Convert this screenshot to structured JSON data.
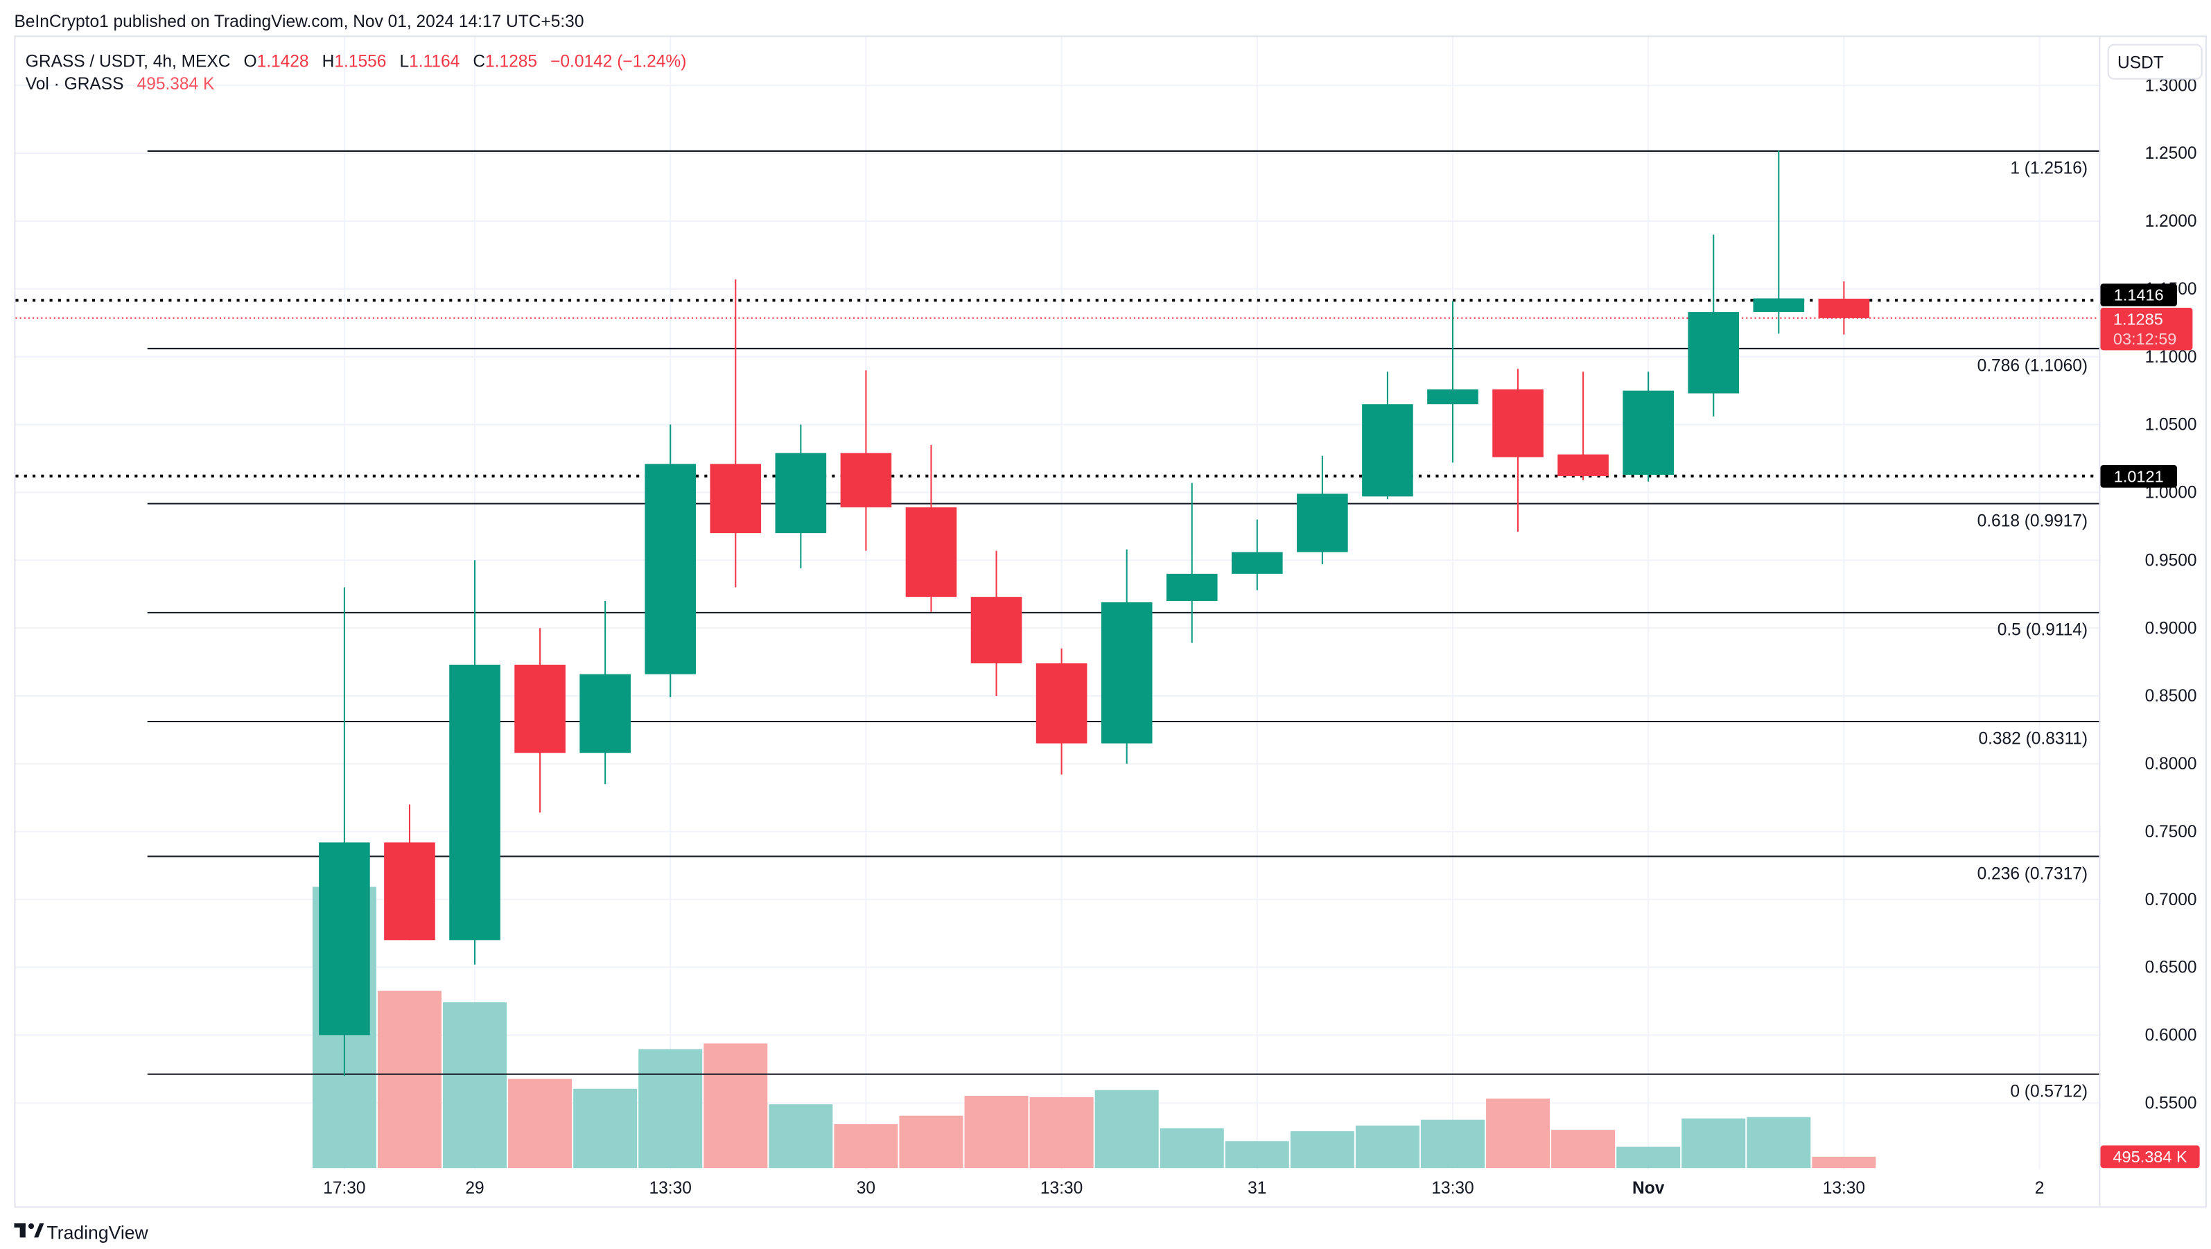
{
  "publisher_line": "BeInCrypto1 published on TradingView.com, Nov 01, 2024 14:17 UTC+5:30",
  "legend": {
    "symbol": "GRASS / USDT, 4h, MEXC",
    "o_label": "O",
    "o": "1.1428",
    "h_label": "H",
    "h": "1.1556",
    "l_label": "L",
    "l": "1.1164",
    "c_label": "C",
    "c": "1.1285",
    "change": "−0.0142 (−1.24%)",
    "vol_label": "Vol · GRASS",
    "vol": "495.384 K"
  },
  "currency_button": "USDT",
  "logo_text": "TradingView",
  "colors": {
    "up": "#089981",
    "down": "#f23645",
    "vol_up": "#92d2cc",
    "vol_down": "#f7a9a7"
  },
  "badges": {
    "line1": "1.1416",
    "last_price": "1.1285",
    "countdown": "03:12:59",
    "line2": "1.0121",
    "volume": "495.384 K"
  },
  "chart_data": {
    "type": "candlestick",
    "title": "GRASS / USDT, 4h, MEXC",
    "ylim": [
      0.5,
      1.31
    ],
    "y_ticks": [
      "1.3000",
      "1.2500",
      "1.2000",
      "1.1500",
      "1.1000",
      "1.0500",
      "1.0000",
      "0.9500",
      "0.9000",
      "0.8500",
      "0.8000",
      "0.7500",
      "0.7000",
      "0.6500",
      "0.6000",
      "0.5500"
    ],
    "x_ticks": [
      {
        "label": "17:30",
        "index": 0
      },
      {
        "label": "29",
        "index": 2
      },
      {
        "label": "13:30",
        "index": 5
      },
      {
        "label": "30",
        "index": 8
      },
      {
        "label": "13:30",
        "index": 11
      },
      {
        "label": "31",
        "index": 14
      },
      {
        "label": "13:30",
        "index": 17
      },
      {
        "label": "Nov",
        "index": 20,
        "bold": true
      },
      {
        "label": "13:30",
        "index": 23
      },
      {
        "label": "2",
        "index": 26
      }
    ],
    "candles": [
      {
        "o": 0.6,
        "h": 0.93,
        "l": 0.57,
        "c": 0.742,
        "v": 12300
      },
      {
        "o": 0.742,
        "h": 0.77,
        "l": 0.67,
        "c": 0.67,
        "v": 7750
      },
      {
        "o": 0.67,
        "h": 0.95,
        "l": 0.652,
        "c": 0.873,
        "v": 7250
      },
      {
        "o": 0.873,
        "h": 0.9,
        "l": 0.764,
        "c": 0.808,
        "v": 3900
      },
      {
        "o": 0.808,
        "h": 0.92,
        "l": 0.785,
        "c": 0.866,
        "v": 3470
      },
      {
        "o": 0.866,
        "h": 1.05,
        "l": 0.849,
        "c": 1.021,
        "v": 5200
      },
      {
        "o": 1.021,
        "h": 1.157,
        "l": 0.93,
        "c": 0.97,
        "v": 5450
      },
      {
        "o": 0.97,
        "h": 1.05,
        "l": 0.944,
        "c": 1.029,
        "v": 2790
      },
      {
        "o": 1.029,
        "h": 1.09,
        "l": 0.957,
        "c": 0.989,
        "v": 1920
      },
      {
        "o": 0.989,
        "h": 1.035,
        "l": 0.912,
        "c": 0.923,
        "v": 2290
      },
      {
        "o": 0.923,
        "h": 0.957,
        "l": 0.85,
        "c": 0.874,
        "v": 3160
      },
      {
        "o": 0.874,
        "h": 0.885,
        "l": 0.792,
        "c": 0.815,
        "v": 3100
      },
      {
        "o": 0.815,
        "h": 0.958,
        "l": 0.8,
        "c": 0.919,
        "v": 3410
      },
      {
        "o": 0.92,
        "h": 1.007,
        "l": 0.889,
        "c": 0.94,
        "v": 1740
      },
      {
        "o": 0.94,
        "h": 0.98,
        "l": 0.928,
        "c": 0.956,
        "v": 1180
      },
      {
        "o": 0.956,
        "h": 1.027,
        "l": 0.947,
        "c": 0.999,
        "v": 1610
      },
      {
        "o": 0.997,
        "h": 1.089,
        "l": 0.995,
        "c": 1.065,
        "v": 1860
      },
      {
        "o": 1.065,
        "h": 1.141,
        "l": 1.022,
        "c": 1.076,
        "v": 2110
      },
      {
        "o": 1.076,
        "h": 1.091,
        "l": 0.971,
        "c": 1.026,
        "v": 3040
      },
      {
        "o": 1.028,
        "h": 1.089,
        "l": 1.009,
        "c": 1.012,
        "v": 1670
      },
      {
        "o": 1.013,
        "h": 1.089,
        "l": 1.008,
        "c": 1.075,
        "v": 930
      },
      {
        "o": 1.073,
        "h": 1.19,
        "l": 1.056,
        "c": 1.133,
        "v": 2170
      },
      {
        "o": 1.133,
        "h": 1.252,
        "l": 1.117,
        "c": 1.143,
        "v": 2230
      },
      {
        "o": 1.1428,
        "h": 1.1556,
        "l": 1.1164,
        "c": 1.1285,
        "v": 495.384
      }
    ],
    "volume_unit": "K",
    "fib_levels": [
      {
        "label": "1 (1.2516)",
        "price": 1.2516
      },
      {
        "label": "0.786 (1.1060)",
        "price": 1.106
      },
      {
        "label": "0.618 (0.9917)",
        "price": 0.9917
      },
      {
        "label": "0.5 (0.9114)",
        "price": 0.9114
      },
      {
        "label": "0.382 (0.8311)",
        "price": 0.8311
      },
      {
        "label": "0.236 (0.7317)",
        "price": 0.7317
      },
      {
        "label": "0 (0.5712)",
        "price": 0.5712
      }
    ],
    "horizontal_lines": [
      1.1416,
      1.0121
    ],
    "last_price": 1.1285
  }
}
